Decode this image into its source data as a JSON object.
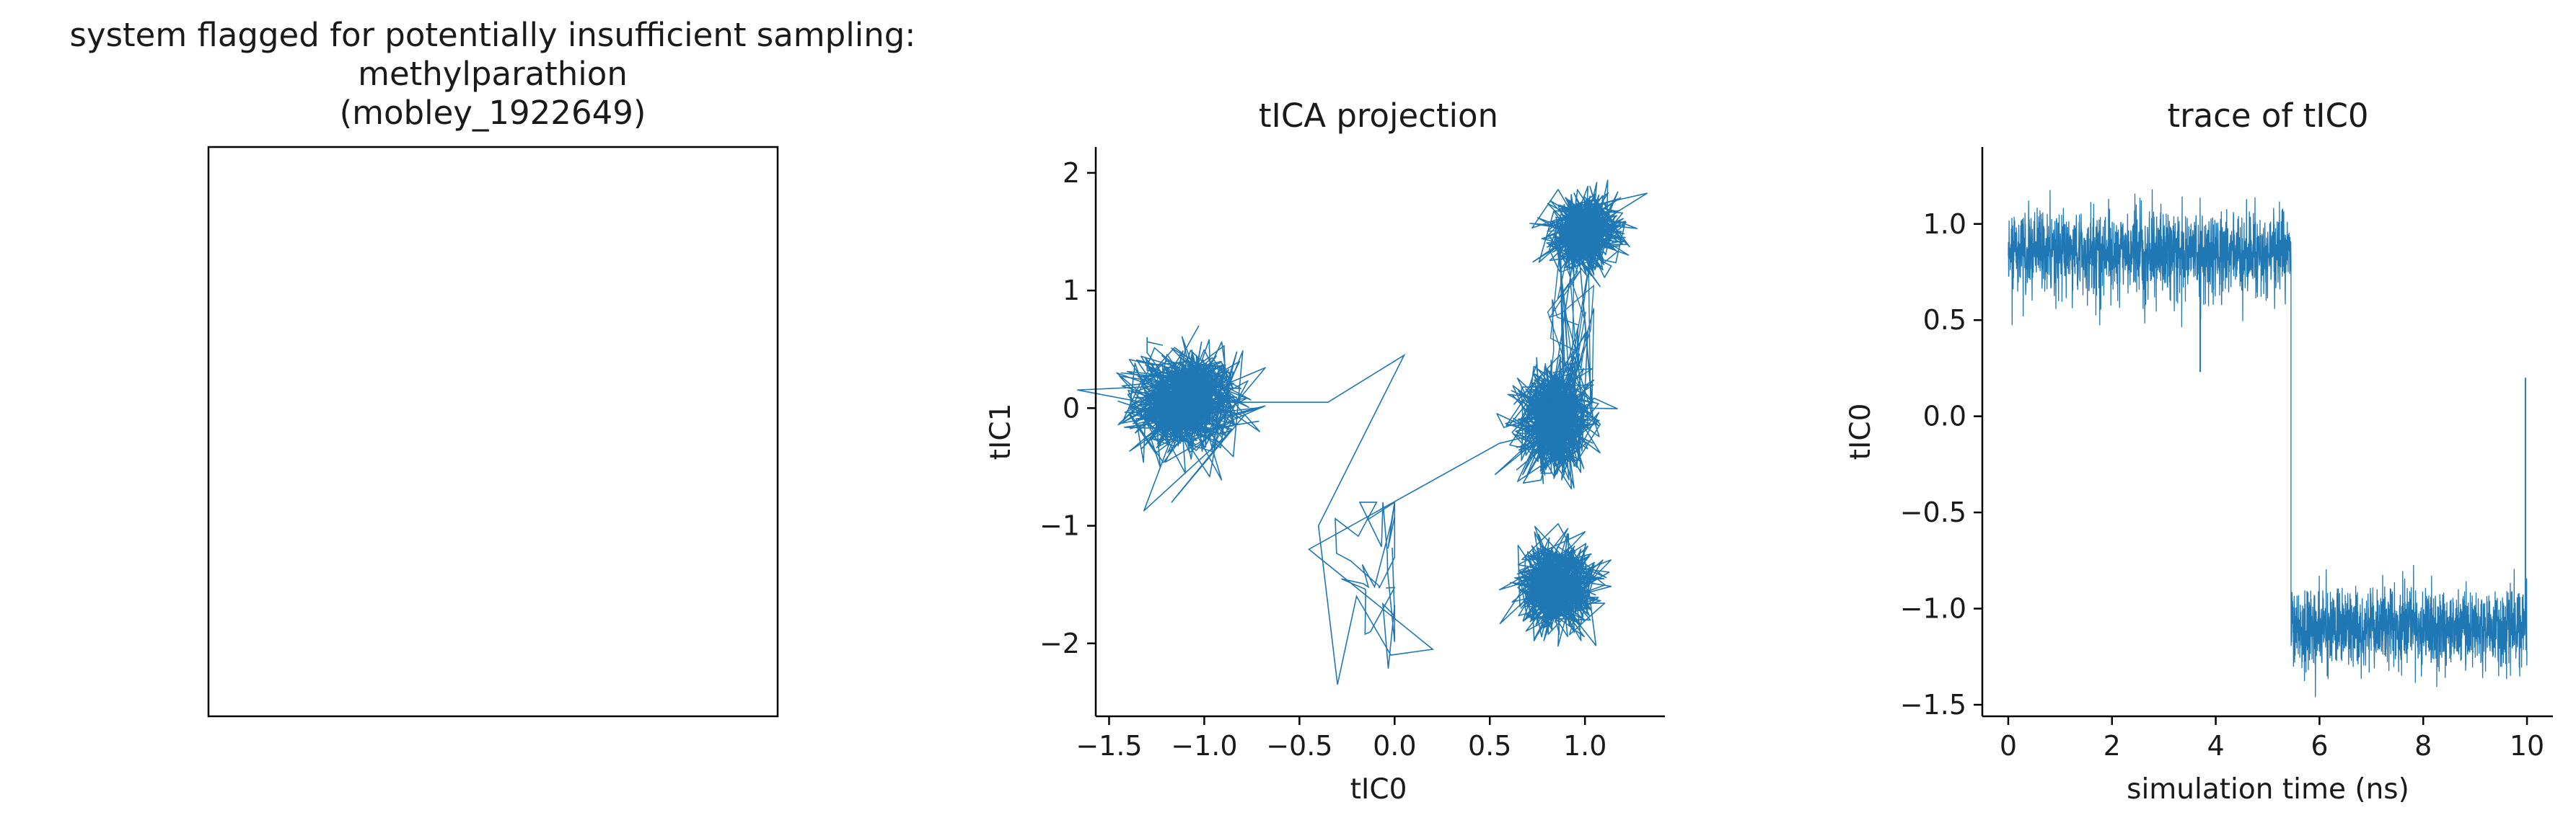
{
  "chart_data": [
    {
      "type": "other",
      "title_lines": [
        "system flagged for potentially insufficient sampling:",
        "methylparathion",
        "(mobley_1922649)"
      ],
      "note": "empty framed panel"
    },
    {
      "type": "line",
      "title": "tICA projection",
      "xlabel": "tIC0",
      "ylabel": "tIC1",
      "xlim": [
        -1.57,
        1.42
      ],
      "ylim": [
        -2.62,
        2.22
      ],
      "xticks": [
        -1.5,
        -1.0,
        -0.5,
        0.0,
        0.5,
        1.0
      ],
      "xtick_labels": [
        "−1.5",
        "−1.0",
        "−0.5",
        "0.0",
        "0.5",
        "1.0"
      ],
      "yticks": [
        -2,
        -1,
        0,
        1,
        2
      ],
      "ytick_labels": [
        "−2",
        "−1",
        "0",
        "1",
        "2"
      ],
      "color": "#1f77b4",
      "clusters": [
        {
          "center": [
            -1.1,
            0.05
          ],
          "spread": [
            0.14,
            0.22
          ]
        },
        {
          "center": [
            0.85,
            -0.1
          ],
          "spread": [
            0.1,
            0.22
          ]
        },
        {
          "center": [
            0.85,
            -1.5
          ],
          "spread": [
            0.1,
            0.18
          ]
        },
        {
          "center": [
            1.0,
            1.5
          ],
          "spread": [
            0.09,
            0.15
          ]
        }
      ],
      "excursion_path": [
        [
          -1.05,
          0.05
        ],
        [
          -0.35,
          0.05
        ],
        [
          0.05,
          0.45
        ],
        [
          -0.4,
          -1.0
        ],
        [
          -0.3,
          -2.35
        ],
        [
          -0.2,
          -1.6
        ],
        [
          -0.02,
          -2.1
        ],
        [
          0.2,
          -2.05
        ],
        [
          -0.45,
          -1.2
        ],
        [
          0.55,
          -0.3
        ],
        [
          0.8,
          -0.2
        ],
        [
          0.95,
          1.4
        ]
      ]
    },
    {
      "type": "line",
      "title": "trace of tIC0",
      "xlabel": "simulation time (ns)",
      "ylabel": "tIC0",
      "xlim": [
        -0.5,
        10.5
      ],
      "ylim": [
        -1.56,
        1.4
      ],
      "xticks": [
        0,
        2,
        4,
        6,
        8,
        10
      ],
      "xtick_labels": [
        "0",
        "2",
        "4",
        "6",
        "8",
        "10"
      ],
      "yticks": [
        -1.5,
        -1.0,
        -0.5,
        0.0,
        0.5,
        1.0
      ],
      "ytick_labels": [
        "−1.5",
        "−1.0",
        "−0.5",
        "0.0",
        "0.5",
        "1.0"
      ],
      "color": "#1f77b4",
      "segments": [
        {
          "t_start": 0.0,
          "t_end": 5.45,
          "mean": 0.85,
          "noise": 0.11
        },
        {
          "t_start": 5.45,
          "t_end": 10.0,
          "mean": -1.1,
          "noise": 0.1
        }
      ],
      "spikes": [
        {
          "t": 3.7,
          "value": 0.23
        },
        {
          "t": 9.97,
          "value": 0.2
        }
      ]
    }
  ]
}
